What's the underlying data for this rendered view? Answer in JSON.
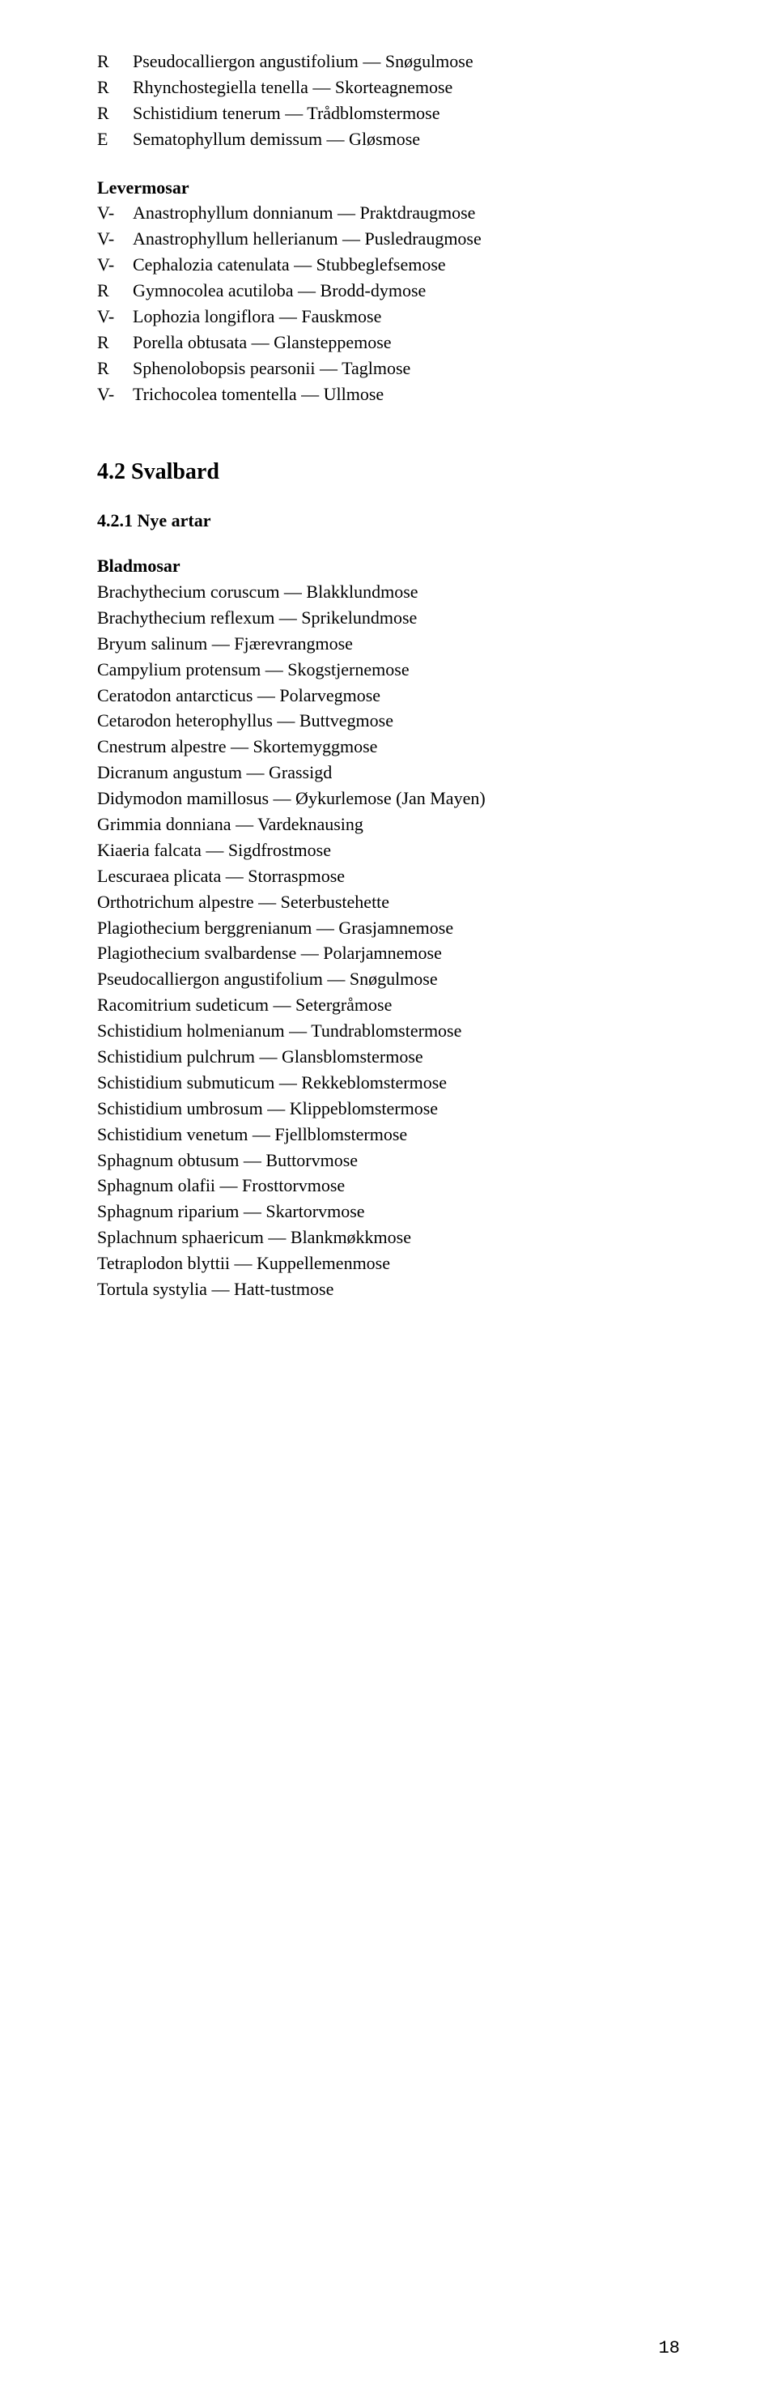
{
  "top_list": [
    {
      "code": "R",
      "text": "Pseudocalliergon angustifolium — Snøgulmose"
    },
    {
      "code": "R",
      "text": "Rhynchostegiella tenella — Skorteagnemose"
    },
    {
      "code": "R",
      "text": "Schistidium tenerum — Trådblomstermose"
    },
    {
      "code": "E",
      "text": "Sematophyllum demissum — Gløsmose"
    }
  ],
  "levermosar_title": "Levermosar",
  "levermosar_list": [
    {
      "code": "V-",
      "text": "Anastrophyllum donnianum — Praktdraugmose"
    },
    {
      "code": "V-",
      "text": "Anastrophyllum hellerianum — Pusledraugmose"
    },
    {
      "code": "V-",
      "text": "Cephalozia catenulata — Stubbeglefsemose"
    },
    {
      "code": "R",
      "text": "Gymnocolea acutiloba — Brodd-dymose"
    },
    {
      "code": "V-",
      "text": "Lophozia longiflora — Fauskmose"
    },
    {
      "code": "R",
      "text": "Porella obtusata — Glansteppemose"
    },
    {
      "code": "R",
      "text": "Sphenolobopsis pearsonii — Taglmose"
    },
    {
      "code": "V-",
      "text": "Trichocolea tomentella — Ullmose"
    }
  ],
  "svalbard_title": "4.2 Svalbard",
  "nye_artar_title": "4.2.1 Nye artar",
  "bladmosar_title": "Bladmosar",
  "bladmosar_list": [
    "Brachythecium coruscum — Blakklundmose",
    "Brachythecium reflexum — Sprikelundmose",
    "Bryum salinum — Fjærevrangmose",
    "Campylium protensum — Skogstjernemose",
    "Ceratodon antarcticus — Polarvegmose",
    "Cetarodon heterophyllus — Buttvegmose",
    "Cnestrum alpestre — Skortemyggmose",
    "Dicranum angustum — Grassigd",
    "Didymodon mamillosus — Øykurlemose (Jan Mayen)",
    "Grimmia donniana — Vardeknausing",
    "Kiaeria falcata — Sigdfrostmose",
    "Lescuraea plicata — Storraspmose",
    "Orthotrichum alpestre — Seterbustehette",
    "Plagiothecium berggrenianum — Grasjamnemose",
    "Plagiothecium svalbardense — Polarjamnemose",
    "Pseudocalliergon angustifolium — Snøgulmose",
    "Racomitrium sudeticum — Setergråmose",
    "Schistidium holmenianum — Tundrablomstermose",
    "Schistidium pulchrum — Glansblomstermose",
    "Schistidium submuticum — Rekkeblomstermose",
    "Schistidium umbrosum — Klippeblomstermose",
    "Schistidium venetum — Fjellblomstermose",
    "Sphagnum obtusum — Buttorvmose",
    "Sphagnum olafii — Frosttorvmose",
    "Sphagnum riparium — Skartorvmose",
    "Splachnum sphaericum — Blankmøkkmose",
    "Tetraplodon blyttii — Kuppellemenmose",
    "Tortula systylia — Hatt-tustmose"
  ],
  "page_number": "18"
}
